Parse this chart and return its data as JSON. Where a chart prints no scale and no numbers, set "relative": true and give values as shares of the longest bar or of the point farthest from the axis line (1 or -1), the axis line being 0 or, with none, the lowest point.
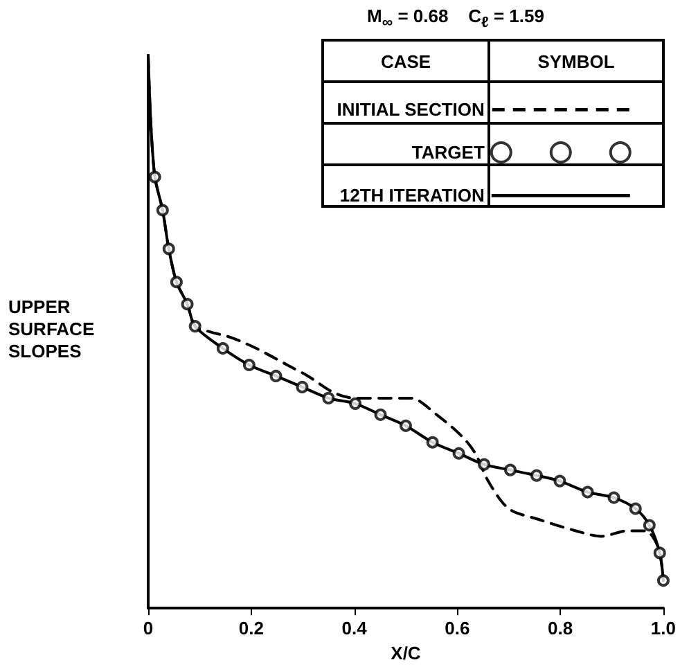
{
  "chart_data": {
    "type": "line",
    "title": "M$_{∞}$ = 0.68    C$_{ℓ}$ = 1.59",
    "xlabel": "X/C",
    "ylabel": "UPPER\nSURFACE\nSLOPES",
    "legend_title": "CASE",
    "annotations": [
      "SYMBOL"
    ],
    "relative": true,
    "grid": false,
    "legend": "top right",
    "xlim": [
      0,
      1
    ],
    "xticks": [
      0,
      0.2,
      0.4,
      0.6,
      0.8,
      {
        "value": 1,
        "label": "1.0"
      }
    ],
    "series": [
      {
        "name": "INITIAL SECTION",
        "color": "#000000",
        "line_style": "dashed",
        "marker": "none",
        "x": [
          0,
          0.005,
          0.013,
          0.028,
          0.04,
          0.055,
          0.076,
          0.091,
          0.12,
          0.16,
          0.21,
          0.27,
          0.31,
          0.36,
          0.4,
          0.455,
          0.51,
          0.56,
          0.61,
          0.635,
          0.66,
          0.7,
          0.76,
          0.83,
          0.88,
          0.93,
          0.965,
          0.99,
          1
        ],
        "values": [
          1,
          0.88,
          0.78,
          0.72,
          0.65,
          0.59,
          0.55,
          0.51,
          0.5,
          0.49,
          0.47,
          0.44,
          0.42,
          0.39,
          0.38,
          0.38,
          0.38,
          0.35,
          0.31,
          0.28,
          0.23,
          0.18,
          0.16,
          0.14,
          0.13,
          0.14,
          0.14,
          0.11,
          0.05
        ]
      },
      {
        "name": "TARGET",
        "type": "scatter",
        "color": "#000000",
        "marker": "circle",
        "x": [
          0.013,
          0.028,
          0.04,
          0.055,
          0.076,
          0.091,
          0.145,
          0.196,
          0.248,
          0.299,
          0.35,
          0.402,
          0.451,
          0.5,
          0.552,
          0.603,
          0.652,
          0.703,
          0.754,
          0.799,
          0.853,
          0.904,
          0.946,
          0.973,
          0.993,
          1
        ],
        "values": [
          0.78,
          0.72,
          0.65,
          0.59,
          0.55,
          0.51,
          0.47,
          0.44,
          0.42,
          0.4,
          0.38,
          0.37,
          0.35,
          0.33,
          0.3,
          0.28,
          0.26,
          0.25,
          0.24,
          0.23,
          0.21,
          0.2,
          0.18,
          0.15,
          0.1,
          0.05
        ]
      },
      {
        "name": "12TH ITERATION",
        "color": "#000000",
        "line_style": "solid",
        "marker": "none",
        "x": [
          0,
          0.005,
          0.013,
          0.028,
          0.04,
          0.055,
          0.076,
          0.091,
          0.145,
          0.196,
          0.248,
          0.299,
          0.35,
          0.402,
          0.451,
          0.5,
          0.552,
          0.603,
          0.652,
          0.703,
          0.754,
          0.799,
          0.853,
          0.904,
          0.946,
          0.973,
          0.993,
          1
        ],
        "values": [
          1,
          0.88,
          0.78,
          0.72,
          0.65,
          0.59,
          0.55,
          0.51,
          0.47,
          0.44,
          0.42,
          0.4,
          0.38,
          0.37,
          0.35,
          0.33,
          0.3,
          0.28,
          0.26,
          0.25,
          0.24,
          0.23,
          0.21,
          0.2,
          0.18,
          0.15,
          0.1,
          0.05
        ]
      }
    ]
  }
}
